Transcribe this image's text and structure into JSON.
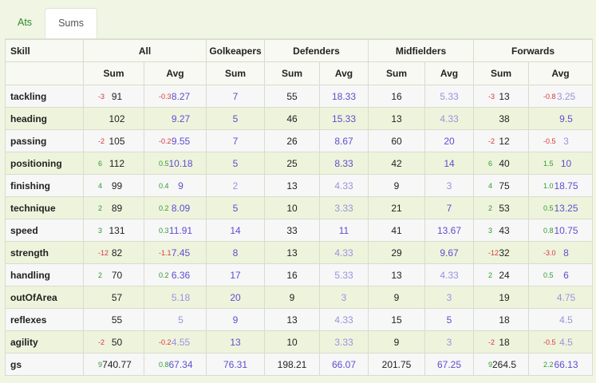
{
  "tabs": [
    {
      "label": "Ats",
      "active": false
    },
    {
      "label": "Sums",
      "active": true
    }
  ],
  "header": {
    "skill": "Skill",
    "groups": [
      "All",
      "Golkeapers",
      "Defenders",
      "Midfielders",
      "Forwards"
    ],
    "sum": "Sum",
    "avg": "Avg"
  },
  "colors": {
    "positive": "#2f9a2f",
    "negative": "#d9363e",
    "avg": "#5d4ed0",
    "avg_light": "#9a92e0"
  },
  "rows": [
    {
      "skill": "tackling",
      "all": {
        "sd": "-3",
        "sum": "91",
        "ad": "-0.3",
        "avg": "8.27"
      },
      "gk": {
        "avg": "7"
      },
      "def": {
        "sum": "55",
        "avg": "18.33"
      },
      "mid": {
        "sum": "16",
        "avg": "5.33"
      },
      "fwd": {
        "sd": "-3",
        "sum": "13",
        "ad": "-0.8",
        "avg": "3.25"
      }
    },
    {
      "skill": "heading",
      "all": {
        "sd": "",
        "sum": "102",
        "ad": "",
        "avg": "9.27"
      },
      "gk": {
        "avg": "5"
      },
      "def": {
        "sum": "46",
        "avg": "15.33"
      },
      "mid": {
        "sum": "13",
        "avg": "4.33"
      },
      "fwd": {
        "sd": "",
        "sum": "38",
        "ad": "",
        "avg": "9.5"
      }
    },
    {
      "skill": "passing",
      "all": {
        "sd": "-2",
        "sum": "105",
        "ad": "-0.2",
        "avg": "9.55"
      },
      "gk": {
        "avg": "7"
      },
      "def": {
        "sum": "26",
        "avg": "8.67"
      },
      "mid": {
        "sum": "60",
        "avg": "20"
      },
      "fwd": {
        "sd": "-2",
        "sum": "12",
        "ad": "-0.5",
        "avg": "3"
      }
    },
    {
      "skill": "positioning",
      "all": {
        "sd": "6",
        "sum": "112",
        "ad": "0.5",
        "avg": "10.18"
      },
      "gk": {
        "avg": "5"
      },
      "def": {
        "sum": "25",
        "avg": "8.33"
      },
      "mid": {
        "sum": "42",
        "avg": "14"
      },
      "fwd": {
        "sd": "6",
        "sum": "40",
        "ad": "1.5",
        "avg": "10"
      }
    },
    {
      "skill": "finishing",
      "all": {
        "sd": "4",
        "sum": "99",
        "ad": "0.4",
        "avg": "9"
      },
      "gk": {
        "avg": "2"
      },
      "def": {
        "sum": "13",
        "avg": "4.33"
      },
      "mid": {
        "sum": "9",
        "avg": "3"
      },
      "fwd": {
        "sd": "4",
        "sum": "75",
        "ad": "1.0",
        "avg": "18.75"
      }
    },
    {
      "skill": "technique",
      "all": {
        "sd": "2",
        "sum": "89",
        "ad": "0.2",
        "avg": "8.09"
      },
      "gk": {
        "avg": "5"
      },
      "def": {
        "sum": "10",
        "avg": "3.33"
      },
      "mid": {
        "sum": "21",
        "avg": "7"
      },
      "fwd": {
        "sd": "2",
        "sum": "53",
        "ad": "0.5",
        "avg": "13.25"
      }
    },
    {
      "skill": "speed",
      "all": {
        "sd": "3",
        "sum": "131",
        "ad": "0.3",
        "avg": "11.91"
      },
      "gk": {
        "avg": "14"
      },
      "def": {
        "sum": "33",
        "avg": "11"
      },
      "mid": {
        "sum": "41",
        "avg": "13.67"
      },
      "fwd": {
        "sd": "3",
        "sum": "43",
        "ad": "0.8",
        "avg": "10.75"
      }
    },
    {
      "skill": "strength",
      "all": {
        "sd": "-12",
        "sum": "82",
        "ad": "-1.1",
        "avg": "7.45"
      },
      "gk": {
        "avg": "8"
      },
      "def": {
        "sum": "13",
        "avg": "4.33"
      },
      "mid": {
        "sum": "29",
        "avg": "9.67"
      },
      "fwd": {
        "sd": "-12",
        "sum": "32",
        "ad": "-3.0",
        "avg": "8"
      }
    },
    {
      "skill": "handling",
      "all": {
        "sd": "2",
        "sum": "70",
        "ad": "0.2",
        "avg": "6.36"
      },
      "gk": {
        "avg": "17"
      },
      "def": {
        "sum": "16",
        "avg": "5.33"
      },
      "mid": {
        "sum": "13",
        "avg": "4.33"
      },
      "fwd": {
        "sd": "2",
        "sum": "24",
        "ad": "0.5",
        "avg": "6"
      }
    },
    {
      "skill": "outOfArea",
      "all": {
        "sd": "",
        "sum": "57",
        "ad": "",
        "avg": "5.18"
      },
      "gk": {
        "avg": "20"
      },
      "def": {
        "sum": "9",
        "avg": "3"
      },
      "mid": {
        "sum": "9",
        "avg": "3"
      },
      "fwd": {
        "sd": "",
        "sum": "19",
        "ad": "",
        "avg": "4.75"
      }
    },
    {
      "skill": "reflexes",
      "all": {
        "sd": "",
        "sum": "55",
        "ad": "",
        "avg": "5"
      },
      "gk": {
        "avg": "9"
      },
      "def": {
        "sum": "13",
        "avg": "4.33"
      },
      "mid": {
        "sum": "15",
        "avg": "5"
      },
      "fwd": {
        "sd": "",
        "sum": "18",
        "ad": "",
        "avg": "4.5"
      }
    },
    {
      "skill": "agility",
      "all": {
        "sd": "-2",
        "sum": "50",
        "ad": "-0.2",
        "avg": "4.55"
      },
      "gk": {
        "avg": "13"
      },
      "def": {
        "sum": "10",
        "avg": "3.33"
      },
      "mid": {
        "sum": "9",
        "avg": "3"
      },
      "fwd": {
        "sd": "-2",
        "sum": "18",
        "ad": "-0.5",
        "avg": "4.5"
      }
    },
    {
      "skill": "gs",
      "all": {
        "sd": "9",
        "sum": "740.77",
        "ad": "0.8",
        "avg": "67.34"
      },
      "gk": {
        "avg": "76.31"
      },
      "def": {
        "sum": "198.21",
        "avg": "66.07"
      },
      "mid": {
        "sum": "201.75",
        "avg": "67.25"
      },
      "fwd": {
        "sd": "9",
        "sum": "264.5",
        "ad": "2.2",
        "avg": "66.13"
      }
    }
  ]
}
